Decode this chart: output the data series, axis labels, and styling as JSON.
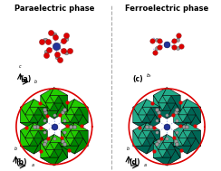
{
  "title_left": "Paraelectric phase",
  "title_right": "Ferroelectric phase",
  "label_a": "(a)",
  "label_b": "(b)",
  "label_c": "(c)",
  "label_d": "(d)",
  "bg_color": "#ffffff",
  "green_bright": "#22cc00",
  "green_dark": "#008800",
  "teal_bright": "#22aa88",
  "teal_dark": "#006655",
  "black": "#000000",
  "red": "#dd0000",
  "blue_metal": "#223399",
  "gray_atom": "#999999",
  "dashed_blue": "#8899dd",
  "divider_color": "#aaaaaa",
  "axes_color": "#222222"
}
